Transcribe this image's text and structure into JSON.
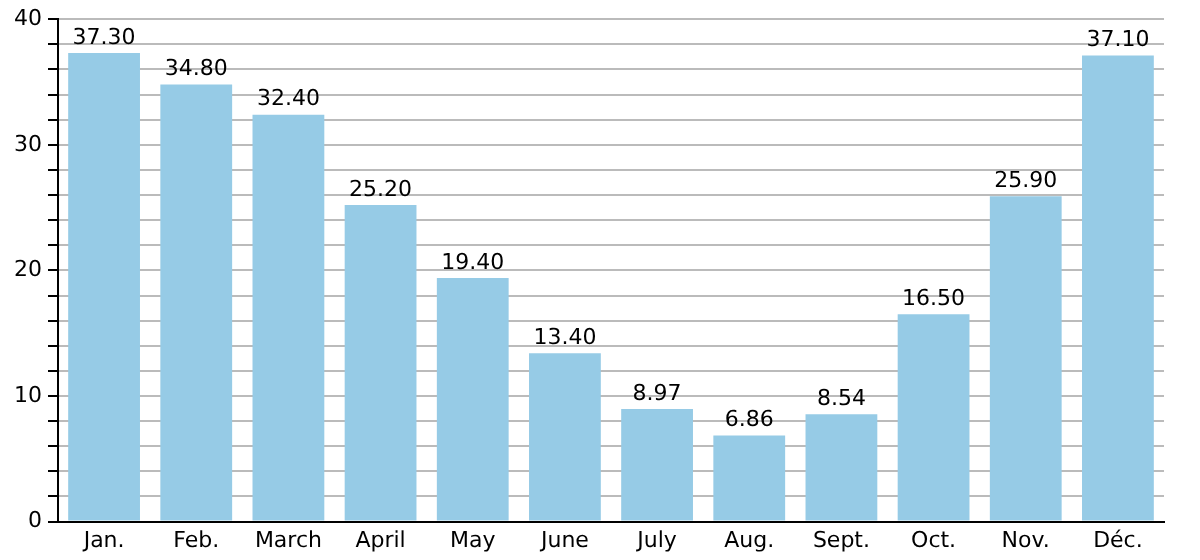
{
  "chart_data": {
    "type": "bar",
    "categories": [
      "Jan.",
      "Feb.",
      "March",
      "April",
      "May",
      "June",
      "July",
      "Aug.",
      "Sept.",
      "Oct.",
      "Nov.",
      "Déc."
    ],
    "values": [
      37.3,
      34.8,
      32.4,
      25.2,
      19.4,
      13.4,
      8.97,
      6.86,
      8.54,
      16.5,
      25.9,
      37.1
    ],
    "value_labels": [
      "37.30",
      "34.80",
      "32.40",
      "25.20",
      "19.40",
      "13.40",
      "8.97",
      "6.86",
      "8.54",
      "16.50",
      "25.90",
      "37.10"
    ],
    "color": "#96cbe6",
    "ylim": [
      0,
      40
    ],
    "yticks": [
      0,
      {
        "value": 2,
        "label": null
      },
      {
        "value": 4,
        "label": null
      },
      {
        "value": 6,
        "label": null
      },
      {
        "value": 8,
        "label": null
      },
      10,
      {
        "value": 12,
        "label": null
      },
      {
        "value": 14,
        "label": null
      },
      {
        "value": 16,
        "label": null
      },
      {
        "value": 18,
        "label": null
      },
      20,
      {
        "value": 22,
        "label": null
      },
      {
        "value": 24,
        "label": null
      },
      {
        "value": 26,
        "label": null
      },
      {
        "value": 28,
        "label": null
      },
      30,
      {
        "value": 32,
        "label": null
      },
      {
        "value": 34,
        "label": null
      },
      {
        "value": 36,
        "label": null
      },
      {
        "value": 38,
        "label": null
      },
      40
    ],
    "grid": "y",
    "legend": false
  }
}
